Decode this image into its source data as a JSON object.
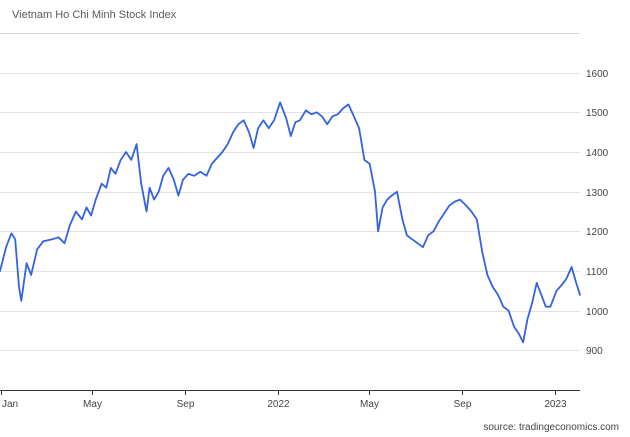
{
  "chart_data": {
    "type": "line",
    "title": "Vietnam Ho Chi Minh Stock Index",
    "source": "source: tradingeconomics.com",
    "xlabel": "",
    "ylabel": "",
    "ylim": [
      800,
      1700
    ],
    "y_ticks": [
      900,
      1000,
      1100,
      1200,
      1300,
      1400,
      1500,
      1600
    ],
    "x_ticks": [
      "Jan",
      "May",
      "Sep",
      "2022",
      "May",
      "Sep",
      "2023"
    ],
    "x_tick_dates": [
      "2021-01-01",
      "2021-05-01",
      "2021-09-01",
      "2022-01-01",
      "2022-05-01",
      "2022-09-01",
      "2023-01-01"
    ],
    "x_range": [
      "2020-12-31",
      "2023-02-03"
    ],
    "grid": true,
    "axis_side": "right",
    "line_color": "#3463e0",
    "series": [
      {
        "name": "",
        "points": [
          [
            "2020-12-31",
            1100
          ],
          [
            "2021-01-08",
            1160
          ],
          [
            "2021-01-15",
            1195
          ],
          [
            "2021-01-20",
            1180
          ],
          [
            "2021-01-25",
            1060
          ],
          [
            "2021-01-28",
            1025
          ],
          [
            "2021-02-04",
            1120
          ],
          [
            "2021-02-10",
            1090
          ],
          [
            "2021-02-18",
            1155
          ],
          [
            "2021-02-26",
            1175
          ],
          [
            "2021-03-10",
            1180
          ],
          [
            "2021-03-18",
            1185
          ],
          [
            "2021-03-26",
            1170
          ],
          [
            "2021-04-02",
            1215
          ],
          [
            "2021-04-10",
            1250
          ],
          [
            "2021-04-18",
            1230
          ],
          [
            "2021-04-24",
            1260
          ],
          [
            "2021-04-30",
            1240
          ],
          [
            "2021-05-06",
            1280
          ],
          [
            "2021-05-14",
            1320
          ],
          [
            "2021-05-20",
            1310
          ],
          [
            "2021-05-26",
            1360
          ],
          [
            "2021-06-01",
            1345
          ],
          [
            "2021-06-08",
            1380
          ],
          [
            "2021-06-15",
            1400
          ],
          [
            "2021-06-22",
            1380
          ],
          [
            "2021-06-29",
            1420
          ],
          [
            "2021-07-05",
            1320
          ],
          [
            "2021-07-12",
            1250
          ],
          [
            "2021-07-16",
            1310
          ],
          [
            "2021-07-22",
            1280
          ],
          [
            "2021-07-28",
            1300
          ],
          [
            "2021-08-03",
            1340
          ],
          [
            "2021-08-10",
            1360
          ],
          [
            "2021-08-17",
            1330
          ],
          [
            "2021-08-23",
            1290
          ],
          [
            "2021-08-29",
            1330
          ],
          [
            "2021-09-05",
            1345
          ],
          [
            "2021-09-13",
            1340
          ],
          [
            "2021-09-21",
            1350
          ],
          [
            "2021-09-29",
            1340
          ],
          [
            "2021-10-06",
            1370
          ],
          [
            "2021-10-13",
            1385
          ],
          [
            "2021-10-20",
            1400
          ],
          [
            "2021-10-27",
            1420
          ],
          [
            "2021-11-03",
            1450
          ],
          [
            "2021-11-10",
            1470
          ],
          [
            "2021-11-17",
            1480
          ],
          [
            "2021-11-24",
            1450
          ],
          [
            "2021-11-30",
            1410
          ],
          [
            "2021-12-06",
            1460
          ],
          [
            "2021-12-13",
            1480
          ],
          [
            "2021-12-20",
            1460
          ],
          [
            "2021-12-27",
            1480
          ],
          [
            "2022-01-04",
            1525
          ],
          [
            "2022-01-12",
            1485
          ],
          [
            "2022-01-18",
            1440
          ],
          [
            "2022-01-24",
            1475
          ],
          [
            "2022-01-30",
            1480
          ],
          [
            "2022-02-07",
            1505
          ],
          [
            "2022-02-14",
            1495
          ],
          [
            "2022-02-21",
            1500
          ],
          [
            "2022-02-28",
            1490
          ],
          [
            "2022-03-07",
            1470
          ],
          [
            "2022-03-14",
            1490
          ],
          [
            "2022-03-21",
            1495
          ],
          [
            "2022-03-28",
            1510
          ],
          [
            "2022-04-04",
            1520
          ],
          [
            "2022-04-11",
            1490
          ],
          [
            "2022-04-18",
            1460
          ],
          [
            "2022-04-25",
            1380
          ],
          [
            "2022-05-02",
            1370
          ],
          [
            "2022-05-09",
            1300
          ],
          [
            "2022-05-13",
            1200
          ],
          [
            "2022-05-19",
            1260
          ],
          [
            "2022-05-25",
            1280
          ],
          [
            "2022-05-31",
            1290
          ],
          [
            "2022-06-07",
            1300
          ],
          [
            "2022-06-14",
            1230
          ],
          [
            "2022-06-20",
            1190
          ],
          [
            "2022-06-27",
            1180
          ],
          [
            "2022-07-04",
            1170
          ],
          [
            "2022-07-11",
            1160
          ],
          [
            "2022-07-18",
            1190
          ],
          [
            "2022-07-25",
            1200
          ],
          [
            "2022-08-01",
            1225
          ],
          [
            "2022-08-08",
            1245
          ],
          [
            "2022-08-15",
            1265
          ],
          [
            "2022-08-22",
            1275
          ],
          [
            "2022-08-29",
            1280
          ],
          [
            "2022-09-06",
            1265
          ],
          [
            "2022-09-13",
            1250
          ],
          [
            "2022-09-20",
            1230
          ],
          [
            "2022-09-27",
            1150
          ],
          [
            "2022-10-04",
            1090
          ],
          [
            "2022-10-11",
            1060
          ],
          [
            "2022-10-18",
            1040
          ],
          [
            "2022-10-25",
            1010
          ],
          [
            "2022-11-01",
            1000
          ],
          [
            "2022-11-08",
            960
          ],
          [
            "2022-11-15",
            940
          ],
          [
            "2022-11-20",
            920
          ],
          [
            "2022-11-26",
            980
          ],
          [
            "2022-12-02",
            1020
          ],
          [
            "2022-12-08",
            1070
          ],
          [
            "2022-12-14",
            1040
          ],
          [
            "2022-12-20",
            1010
          ],
          [
            "2022-12-26",
            1010
          ],
          [
            "2023-01-03",
            1050
          ],
          [
            "2023-01-10",
            1065
          ],
          [
            "2023-01-16",
            1080
          ],
          [
            "2023-01-23",
            1110
          ],
          [
            "2023-01-29",
            1070
          ],
          [
            "2023-02-03",
            1040
          ]
        ]
      }
    ]
  }
}
